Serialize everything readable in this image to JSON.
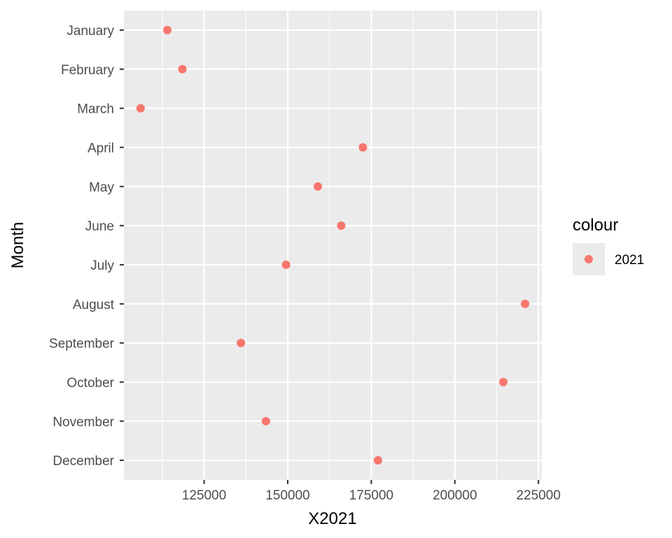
{
  "chart_data": {
    "type": "scatter",
    "xlabel": "X2021",
    "ylabel": "Month",
    "categories": [
      "January",
      "February",
      "March",
      "April",
      "May",
      "June",
      "July",
      "August",
      "September",
      "October",
      "November",
      "December"
    ],
    "series": [
      {
        "name": "2021",
        "color": "#F8766D",
        "values": [
          114000,
          118500,
          106000,
          172500,
          159000,
          166000,
          149500,
          221000,
          136000,
          214500,
          143500,
          177000
        ]
      }
    ],
    "xlim": [
      101000,
      226000
    ],
    "x_ticks": [
      125000,
      150000,
      175000,
      200000,
      225000
    ],
    "x_tick_labels": [
      "125000",
      "150000",
      "175000",
      "200000",
      "225000"
    ],
    "grid": true,
    "legend": {
      "title": "colour",
      "position": "right",
      "entries": [
        "2021"
      ]
    }
  }
}
